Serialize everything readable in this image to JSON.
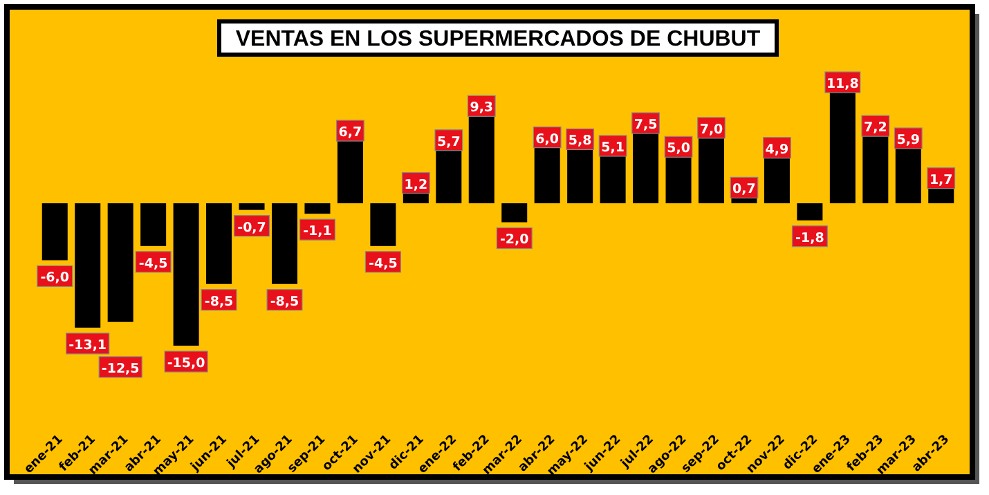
{
  "chart_data": {
    "type": "bar",
    "title": "VENTAS EN LOS SUPERMERCADOS DE CHUBUT",
    "categories": [
      "ene-21",
      "feb-21",
      "mar-21",
      "abr-21",
      "may-21",
      "jun-21",
      "jul-21",
      "ago-21",
      "sep-21",
      "oct-21",
      "nov-21",
      "dic-21",
      "ene-22",
      "feb-22",
      "mar-22",
      "abr-22",
      "may-22",
      "jun-22",
      "jul-22",
      "ago-22",
      "sep-22",
      "oct-22",
      "nov-22",
      "dic-22",
      "ene-23",
      "feb-23",
      "mar-23",
      "abr-23"
    ],
    "values": [
      -6.0,
      -13.1,
      -12.5,
      -4.5,
      -15.0,
      -8.5,
      -0.7,
      -8.5,
      -1.1,
      6.7,
      -4.5,
      1.2,
      5.7,
      9.3,
      -2.0,
      6.0,
      5.8,
      5.1,
      7.5,
      5.0,
      7.0,
      0.7,
      4.9,
      -1.8,
      11.8,
      7.2,
      5.9,
      1.7
    ],
    "value_labels": [
      "-6,0",
      "-13,1",
      "-12,5",
      "-4,5",
      "-15,0",
      "-8,5",
      "-0,7",
      "-8,5",
      "-1,1",
      "6,7",
      "-4,5",
      "1,2",
      "5,7",
      "9,3",
      "-2,0",
      "6,0",
      "5,8",
      "5,1",
      "7,5",
      "5,0",
      "7,0",
      "0,7",
      "4,9",
      "-1,8",
      "11,8",
      "7,2",
      "5,9",
      "1,7"
    ],
    "color": "#000000",
    "grid": false
  }
}
